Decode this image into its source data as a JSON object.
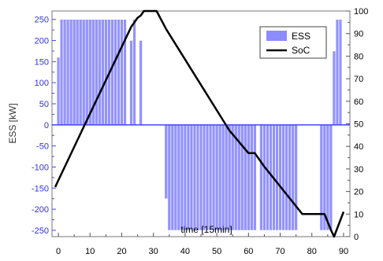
{
  "chart_data": {
    "type": "bar",
    "xlabel": "time [15min]",
    "ylabel": "ESS [kW]",
    "y2label": "",
    "xlim": [
      -2,
      92
    ],
    "ylim": [
      -265,
      270
    ],
    "y2lim": [
      0,
      100
    ],
    "xticks": [
      0,
      10,
      20,
      30,
      40,
      50,
      60,
      70,
      80,
      90
    ],
    "yticks": [
      -250,
      -200,
      -150,
      -100,
      -50,
      0,
      50,
      100,
      150,
      200,
      250
    ],
    "y2ticks": [
      0,
      10,
      20,
      30,
      40,
      50,
      60,
      70,
      80,
      90,
      100
    ],
    "grid": false,
    "legend_position": "top-right",
    "series": [
      {
        "name": "ESS",
        "type": "bar",
        "axis": "left",
        "color": "#8080ff",
        "x": [
          0,
          1,
          2,
          3,
          4,
          5,
          6,
          7,
          8,
          9,
          10,
          11,
          12,
          13,
          14,
          15,
          16,
          17,
          18,
          19,
          20,
          21,
          22,
          23,
          24,
          25,
          26,
          27,
          28,
          29,
          30,
          31,
          32,
          33,
          34,
          35,
          36,
          37,
          38,
          39,
          40,
          41,
          42,
          43,
          44,
          45,
          46,
          47,
          48,
          49,
          50,
          51,
          52,
          53,
          54,
          55,
          56,
          57,
          58,
          59,
          60,
          61,
          62,
          63,
          64,
          65,
          66,
          67,
          68,
          69,
          70,
          71,
          72,
          73,
          74,
          75,
          76,
          77,
          78,
          79,
          80,
          81,
          82,
          83,
          84,
          85,
          86,
          87,
          88,
          89
        ],
        "values": [
          160,
          250,
          250,
          250,
          250,
          250,
          250,
          250,
          250,
          250,
          250,
          250,
          250,
          250,
          250,
          250,
          250,
          250,
          250,
          250,
          250,
          250,
          0,
          200,
          250,
          0,
          200,
          0,
          0,
          0,
          0,
          0,
          0,
          0,
          -175,
          -250,
          -250,
          -250,
          -250,
          -250,
          -250,
          -250,
          -250,
          -250,
          -250,
          -250,
          -250,
          -250,
          -250,
          -250,
          -250,
          -250,
          -250,
          -250,
          -250,
          -250,
          -250,
          -250,
          -250,
          -250,
          -250,
          -250,
          -250,
          0,
          -250,
          -250,
          -250,
          -250,
          -250,
          -250,
          -250,
          -250,
          -250,
          -250,
          -250,
          -250,
          0,
          0,
          0,
          0,
          0,
          0,
          0,
          -250,
          -250,
          -250,
          -250,
          175,
          250,
          250
        ]
      },
      {
        "name": "SoC",
        "type": "line",
        "axis": "right",
        "color": "#000000",
        "x": [
          -1,
          23,
          25,
          26,
          27,
          31,
          34,
          54,
          60,
          62,
          65,
          77,
          84,
          86,
          87,
          90
        ],
        "values": [
          22,
          93,
          97,
          98,
          100,
          100,
          92,
          47,
          37,
          37,
          31,
          10,
          10,
          3,
          0,
          11
        ]
      }
    ]
  }
}
